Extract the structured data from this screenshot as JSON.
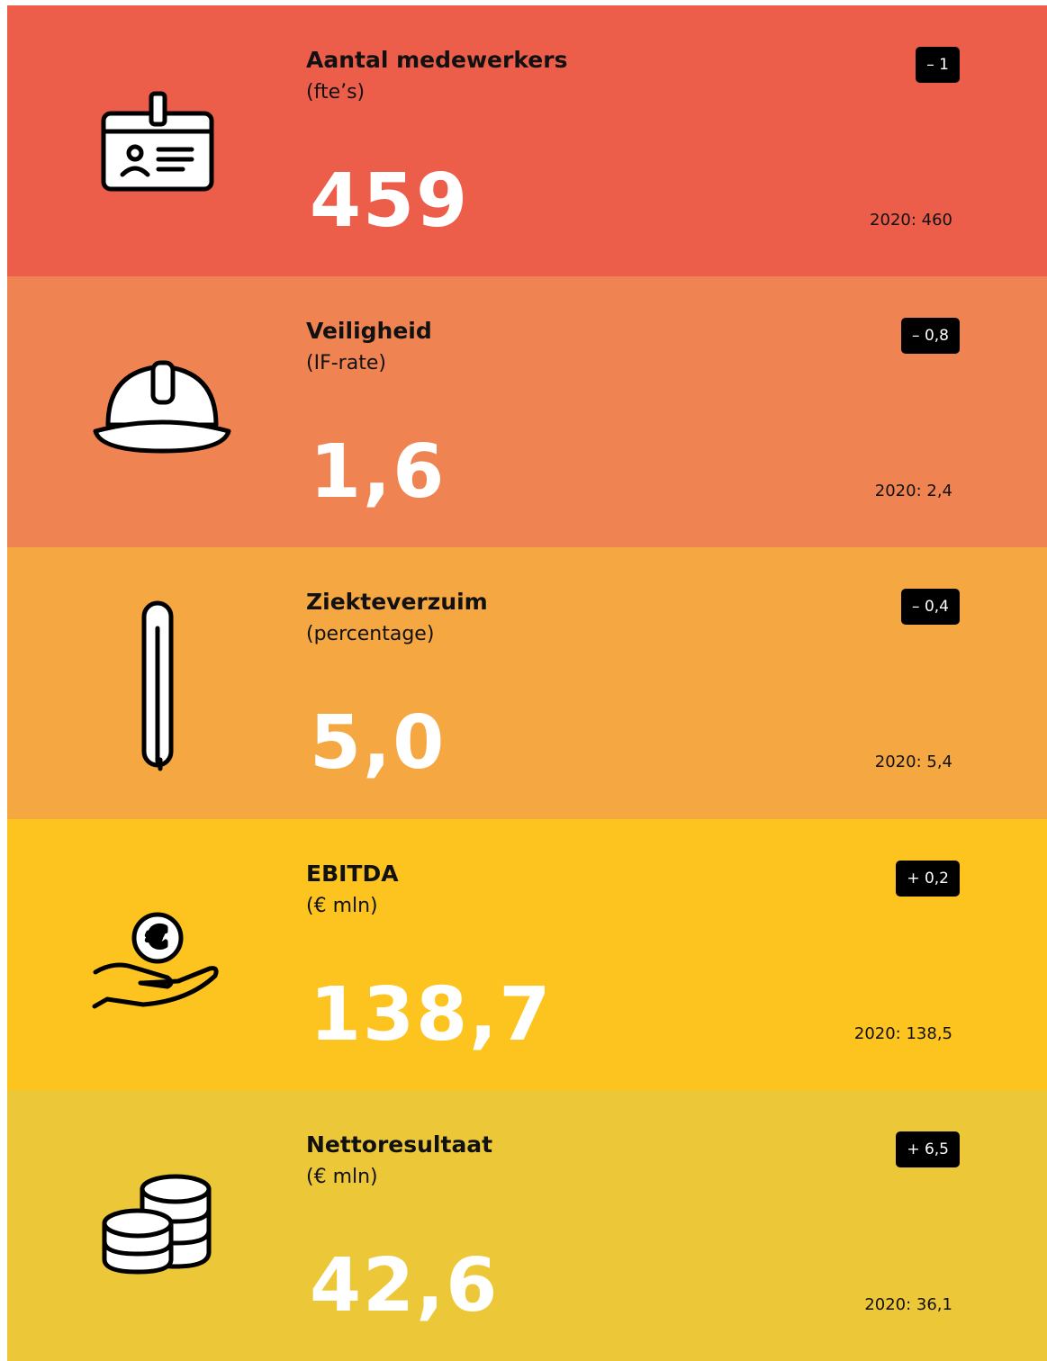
{
  "items": [
    {
      "title": "Aantal medewerkers",
      "unit": "(fte’s)",
      "change": "– 1",
      "value": "459",
      "previous": "2020: 460"
    },
    {
      "title": "Veiligheid",
      "unit": "(IF-rate)",
      "change": "– 0,8",
      "value": "1,6",
      "previous": "2020: 2,4"
    },
    {
      "title": "Ziekteverzuim",
      "unit": "(percentage)",
      "change": "– 0,4",
      "value": "5,0",
      "previous": "2020: 5,4"
    },
    {
      "title": "EBITDA",
      "unit": "(€ mln)",
      "change": "+ 0,2",
      "value": "138,7",
      "previous": "2020: 138,5"
    },
    {
      "title": "Nettoresultaat",
      "unit": "(€ mln)",
      "change": "+ 6,5",
      "value": "42,6",
      "previous": "2020: 36,1"
    }
  ]
}
